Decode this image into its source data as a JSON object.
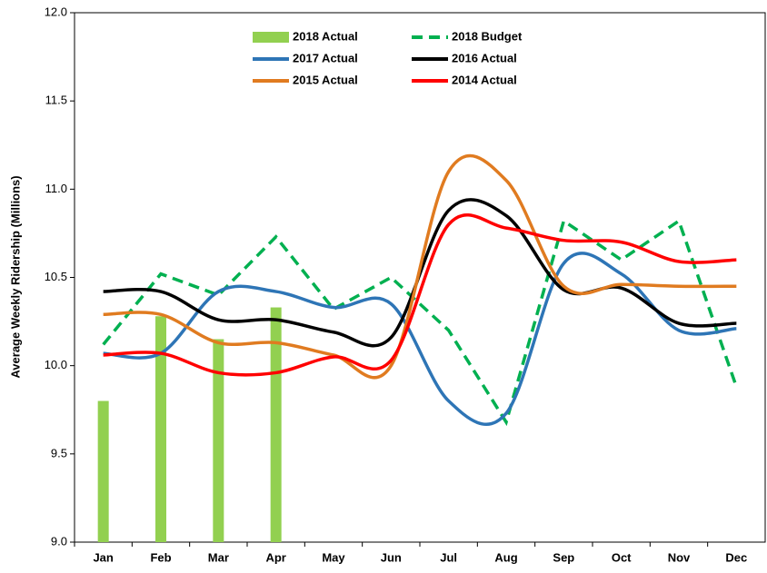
{
  "chart_data": {
    "type": "bar-line",
    "y_label": "Average Weekly Ridership (Millions)",
    "categories": [
      "Jan",
      "Feb",
      "Mar",
      "Apr",
      "May",
      "Jun",
      "Jul",
      "Aug",
      "Sep",
      "Oct",
      "Nov",
      "Dec"
    ],
    "ylim": [
      9.0,
      12.0
    ],
    "yticks": [
      {
        "value": 9.0,
        "label": "9.0"
      },
      {
        "value": 9.5,
        "label": "9.5"
      },
      {
        "value": 10.0,
        "label": "10.0"
      },
      {
        "value": 10.5,
        "label": "10.5"
      },
      {
        "value": 11.0,
        "label": "11.0"
      },
      {
        "value": 11.5,
        "label": "11.5"
      },
      {
        "value": 12.0,
        "label": "12.0"
      }
    ],
    "series": [
      {
        "name": "2018 Actual",
        "kind": "bar",
        "color": "#92d050",
        "values": [
          9.8,
          10.28,
          10.15,
          10.33,
          null,
          null,
          null,
          null,
          null,
          null,
          null,
          null
        ]
      },
      {
        "name": "2018 Budget",
        "kind": "dashed",
        "color": "#00b050",
        "values": [
          10.12,
          10.52,
          10.4,
          10.73,
          10.32,
          10.5,
          10.2,
          9.68,
          10.82,
          10.6,
          10.82,
          9.88
        ]
      },
      {
        "name": "2017 Actual",
        "kind": "smooth",
        "color": "#2e75b6",
        "values": [
          10.07,
          10.07,
          10.42,
          10.42,
          10.33,
          10.35,
          9.8,
          9.73,
          10.58,
          10.52,
          10.2,
          10.21
        ]
      },
      {
        "name": "2016 Actual",
        "kind": "smooth",
        "color": "#000000",
        "values": [
          10.42,
          10.42,
          10.26,
          10.26,
          10.19,
          10.16,
          10.88,
          10.85,
          10.43,
          10.44,
          10.24,
          10.24
        ]
      },
      {
        "name": "2015 Actual",
        "kind": "smooth",
        "color": "#e07b20",
        "values": [
          10.29,
          10.29,
          10.13,
          10.13,
          10.06,
          10.0,
          11.1,
          11.05,
          10.45,
          10.46,
          10.45,
          10.45
        ]
      },
      {
        "name": "2014 Actual",
        "kind": "smooth",
        "color": "#ff0000",
        "values": [
          10.06,
          10.07,
          9.96,
          9.96,
          10.05,
          10.03,
          10.8,
          10.78,
          10.71,
          10.7,
          10.59,
          10.6
        ]
      }
    ]
  }
}
